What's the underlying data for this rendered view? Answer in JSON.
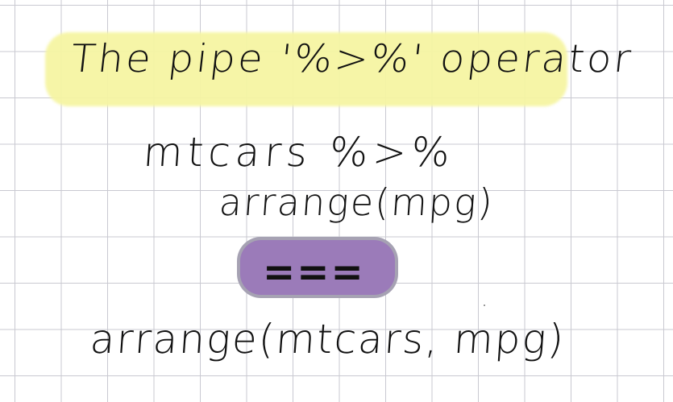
{
  "note": {
    "title": "The pipe '%>%' operator",
    "pipe_line_1": "mtcars %>%",
    "pipe_line_2": "arrange(mpg)",
    "equivalence": "===",
    "nested_call": "arrange(mtcars, mpg)"
  },
  "colors": {
    "grid": "#c9c9d1",
    "highlight": "#f6f5a3",
    "purple_highlight": "#9b7bb9",
    "ink": "#111111"
  }
}
